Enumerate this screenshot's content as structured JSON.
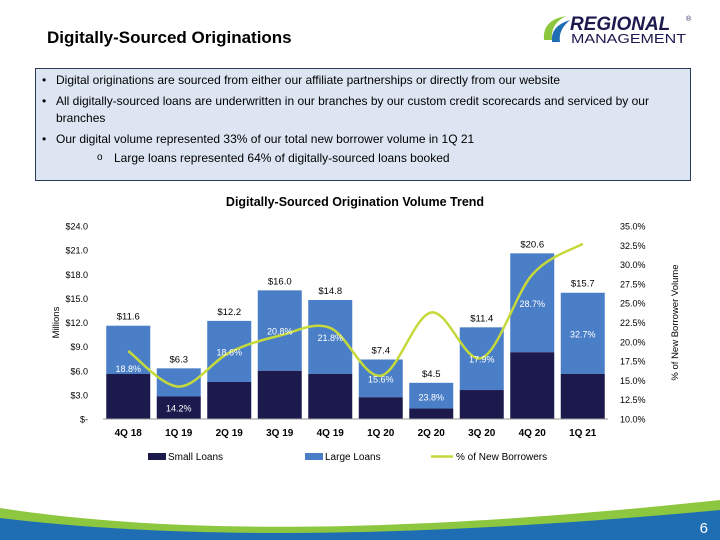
{
  "header": {
    "title": "Digitally-Sourced Originations",
    "logo_top": "REGIONAL",
    "logo_bottom": "MANAGEMENT",
    "logo_mark": "®"
  },
  "bullets": [
    "Digital originations are sourced from either our affiliate partnerships or directly from our website",
    "All digitally-sourced loans are underwritten in our branches by our custom credit scorecards and serviced by our branches",
    "Our digital volume represented 33% of our total new borrower volume in 1Q 21"
  ],
  "sub_bullet": "Large loans represented 64% of digitally-sourced loans booked",
  "page_number": "6",
  "colors": {
    "small_loans": "#1c1a4d",
    "large_loans": "#4a7fc8",
    "new_borrowers_line": "#c6d93a",
    "box_fill": "#dde5f2",
    "footer_blue": "#1f6db3",
    "footer_green": "#8dc63f"
  },
  "chart_data": {
    "type": "bar",
    "title": "Digitally-Sourced Origination Volume Trend",
    "ylabel": "Millions",
    "y2label": "% of New Borrower Volume",
    "categories": [
      "4Q 18",
      "1Q 19",
      "2Q 19",
      "3Q 19",
      "4Q 19",
      "1Q 20",
      "2Q 20",
      "3Q 20",
      "4Q 20",
      "1Q 21"
    ],
    "totals": [
      11.6,
      6.3,
      12.2,
      16.0,
      14.8,
      7.4,
      4.5,
      11.4,
      20.6,
      15.7
    ],
    "total_labels": [
      "$11.6",
      "$6.3",
      "$12.2",
      "$16.0",
      "$14.8",
      "$7.4",
      "$4.5",
      "$11.4",
      "$20.6",
      "$15.7"
    ],
    "series": [
      {
        "name": "Small Loans",
        "values": [
          5.6,
          2.8,
          4.6,
          6.0,
          5.6,
          2.7,
          1.3,
          3.6,
          8.3,
          5.6
        ]
      },
      {
        "name": "Large Loans",
        "values": [
          6.0,
          3.5,
          7.6,
          10.0,
          9.2,
          4.7,
          3.2,
          7.8,
          12.3,
          10.1
        ]
      },
      {
        "name": "% of New Borrowers",
        "axis": "right",
        "values": [
          18.8,
          14.2,
          18.6,
          20.8,
          21.8,
          15.6,
          23.8,
          17.9,
          28.7,
          32.7
        ]
      }
    ],
    "pct_labels": [
      "18.8%",
      "14.2%",
      "18.6%",
      "20.8%",
      "21.8%",
      "15.6%",
      "23.8%",
      "17.9%",
      "28.7%",
      "32.7%"
    ],
    "ylim": [
      0,
      24
    ],
    "y2lim": [
      10,
      35
    ],
    "y_ticks": [
      "$-",
      "$3.0",
      "$6.0",
      "$9.0",
      "$12.0",
      "$15.0",
      "$18.0",
      "$21.0",
      "$24.0"
    ],
    "y2_ticks": [
      "10.0%",
      "12.5%",
      "15.0%",
      "17.5%",
      "20.0%",
      "22.5%",
      "25.0%",
      "27.5%",
      "30.0%",
      "32.5%",
      "35.0%"
    ],
    "legend_position": "bottom",
    "grid": false
  }
}
